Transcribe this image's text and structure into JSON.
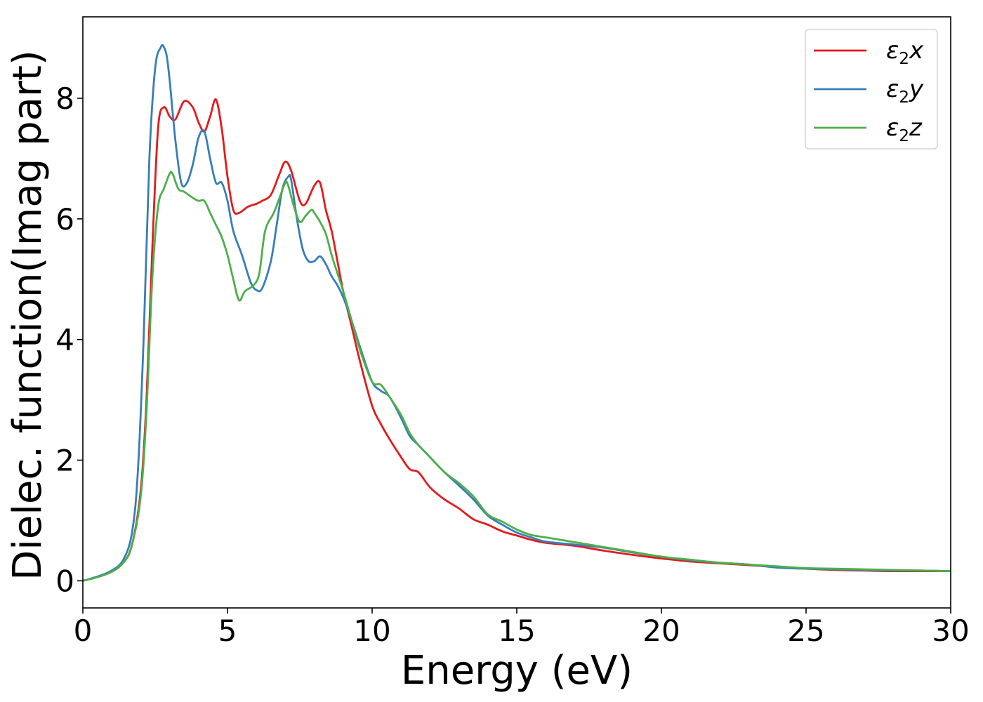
{
  "chart_data": {
    "type": "line",
    "title": "",
    "xlabel": "Energy (eV)",
    "ylabel": "Dielec. function(Imag part)",
    "xlim": [
      0,
      30
    ],
    "ylim": [
      -0.45,
      9.35
    ],
    "xticks": [
      0,
      5,
      10,
      15,
      20,
      25,
      30
    ],
    "xtick_labels": [
      "0",
      "5",
      "10",
      "15",
      "20",
      "25",
      "30"
    ],
    "yticks": [
      0,
      2,
      4,
      6,
      8
    ],
    "ytick_labels": [
      "0",
      "2",
      "4",
      "6",
      "8"
    ],
    "grid": false,
    "legend_position": "top-right",
    "series": [
      {
        "name": "ε₂x",
        "legend_base": "ε",
        "legend_sub": "2",
        "legend_suffix": "x",
        "color": "#e41a1c",
        "x": [
          0,
          0.5,
          1.0,
          1.4,
          1.7,
          2.0,
          2.2,
          2.4,
          2.6,
          2.8,
          3.0,
          3.2,
          3.5,
          3.8,
          4.0,
          4.2,
          4.4,
          4.6,
          4.8,
          5.0,
          5.2,
          5.4,
          5.7,
          6.0,
          6.2,
          6.5,
          6.8,
          7.0,
          7.2,
          7.5,
          7.7,
          8.0,
          8.2,
          8.4,
          8.6,
          8.8,
          9.0,
          9.3,
          9.6,
          10.0,
          10.3,
          10.6,
          11.0,
          11.3,
          11.6,
          12.0,
          12.5,
          13.0,
          13.5,
          14.0,
          14.5,
          15.0,
          15.5,
          16.0,
          17.0,
          18.0,
          19.0,
          20.0,
          21.0,
          22.0,
          23.0,
          24.0,
          25.0,
          26.0,
          27.0,
          28.0,
          29.0,
          30.0
        ],
        "values": [
          0,
          0.06,
          0.15,
          0.3,
          0.6,
          1.5,
          3.0,
          5.5,
          7.5,
          7.85,
          7.7,
          7.65,
          7.95,
          7.85,
          7.6,
          7.45,
          7.7,
          7.98,
          7.5,
          6.7,
          6.15,
          6.1,
          6.2,
          6.25,
          6.3,
          6.4,
          6.75,
          6.95,
          6.8,
          6.3,
          6.25,
          6.55,
          6.6,
          6.15,
          5.8,
          5.3,
          4.8,
          4.2,
          3.6,
          2.9,
          2.6,
          2.35,
          2.05,
          1.85,
          1.8,
          1.55,
          1.35,
          1.2,
          1.02,
          0.93,
          0.82,
          0.75,
          0.68,
          0.63,
          0.58,
          0.5,
          0.43,
          0.37,
          0.32,
          0.29,
          0.26,
          0.23,
          0.2,
          0.18,
          0.17,
          0.16,
          0.16,
          0.16
        ]
      },
      {
        "name": "ε₂y",
        "legend_base": "ε",
        "legend_sub": "2",
        "legend_suffix": "y",
        "color": "#377eb8",
        "x": [
          0,
          0.5,
          1.0,
          1.4,
          1.7,
          1.9,
          2.1,
          2.3,
          2.5,
          2.7,
          2.8,
          2.9,
          3.0,
          3.2,
          3.4,
          3.6,
          3.8,
          4.0,
          4.2,
          4.4,
          4.6,
          4.8,
          5.0,
          5.2,
          5.5,
          5.8,
          6.0,
          6.2,
          6.5,
          6.7,
          6.9,
          7.1,
          7.2,
          7.4,
          7.6,
          7.8,
          8.0,
          8.2,
          8.4,
          8.6,
          8.8,
          9.0,
          9.3,
          9.6,
          10.0,
          10.3,
          10.6,
          11.0,
          11.3,
          11.6,
          12.0,
          12.5,
          13.0,
          13.5,
          14.0,
          14.5,
          15.0,
          15.5,
          16.0,
          17.0,
          18.0,
          19.0,
          20.0,
          21.0,
          22.0,
          23.0,
          24.0,
          25.0,
          26.0,
          27.0,
          28.0,
          29.0,
          30.0
        ],
        "values": [
          0,
          0.07,
          0.17,
          0.35,
          0.8,
          1.8,
          4.0,
          7.0,
          8.5,
          8.85,
          8.85,
          8.7,
          8.3,
          7.3,
          6.6,
          6.6,
          6.9,
          7.35,
          7.45,
          7.0,
          6.6,
          6.6,
          6.3,
          5.8,
          5.4,
          4.95,
          4.82,
          4.85,
          5.3,
          5.9,
          6.5,
          6.7,
          6.65,
          6.0,
          5.5,
          5.3,
          5.3,
          5.38,
          5.25,
          5.05,
          4.9,
          4.7,
          4.3,
          3.85,
          3.3,
          3.15,
          3.05,
          2.7,
          2.4,
          2.25,
          2.05,
          1.8,
          1.58,
          1.35,
          1.08,
          0.93,
          0.8,
          0.72,
          0.65,
          0.6,
          0.55,
          0.47,
          0.4,
          0.34,
          0.3,
          0.27,
          0.22,
          0.2,
          0.19,
          0.18,
          0.17,
          0.17,
          0.16
        ]
      },
      {
        "name": "ε₂z",
        "legend_base": "ε",
        "legend_sub": "2",
        "legend_suffix": "z",
        "color": "#4daf4a",
        "x": [
          0,
          0.5,
          1.0,
          1.4,
          1.7,
          2.0,
          2.2,
          2.4,
          2.6,
          2.8,
          3.0,
          3.1,
          3.3,
          3.5,
          3.8,
          4.0,
          4.2,
          4.4,
          4.6,
          4.8,
          5.0,
          5.2,
          5.4,
          5.6,
          5.9,
          6.1,
          6.3,
          6.6,
          6.8,
          7.0,
          7.1,
          7.3,
          7.5,
          7.7,
          7.9,
          8.0,
          8.2,
          8.4,
          8.6,
          8.8,
          9.0,
          9.3,
          9.6,
          10.0,
          10.3,
          10.6,
          11.0,
          11.3,
          11.6,
          12.0,
          12.5,
          13.0,
          13.5,
          14.0,
          14.5,
          15.0,
          15.5,
          16.0,
          17.0,
          18.0,
          19.0,
          20.0,
          21.0,
          22.0,
          23.0,
          24.0,
          25.0,
          26.0,
          27.0,
          28.0,
          29.0,
          30.0
        ],
        "values": [
          0,
          0.06,
          0.15,
          0.3,
          0.6,
          1.4,
          2.8,
          5.0,
          6.2,
          6.5,
          6.75,
          6.75,
          6.5,
          6.45,
          6.35,
          6.3,
          6.3,
          6.1,
          5.9,
          5.7,
          5.4,
          5.0,
          4.65,
          4.8,
          4.9,
          5.1,
          5.8,
          6.1,
          6.35,
          6.6,
          6.55,
          6.2,
          5.95,
          6.05,
          6.15,
          6.1,
          5.95,
          5.75,
          5.4,
          5.1,
          4.8,
          4.3,
          3.8,
          3.3,
          3.25,
          3.05,
          2.75,
          2.45,
          2.25,
          2.05,
          1.8,
          1.62,
          1.4,
          1.1,
          0.98,
          0.85,
          0.76,
          0.72,
          0.64,
          0.56,
          0.48,
          0.4,
          0.35,
          0.3,
          0.27,
          0.24,
          0.21,
          0.2,
          0.19,
          0.18,
          0.17,
          0.16
        ]
      }
    ]
  }
}
